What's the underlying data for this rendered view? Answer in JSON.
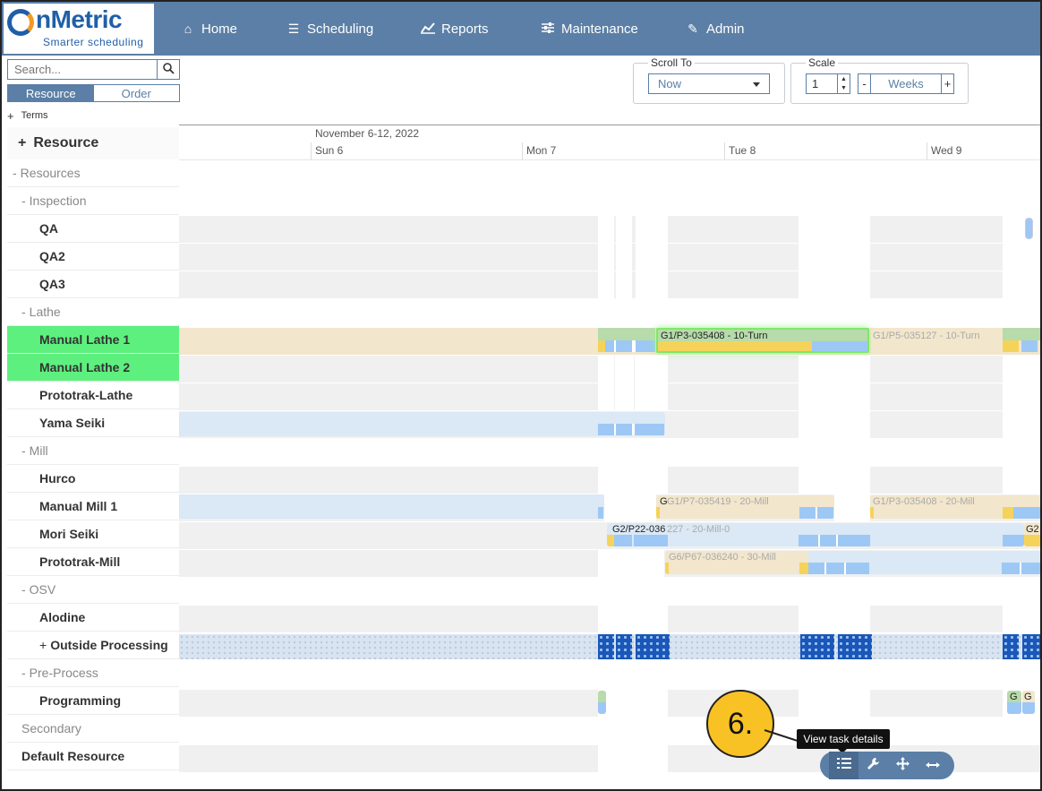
{
  "app": {
    "logo_name": "nMetric",
    "logo_tagline": "Smarter scheduling"
  },
  "nav": [
    {
      "label": "Home",
      "icon": "home-icon"
    },
    {
      "label": "Scheduling",
      "icon": "scheduling-icon"
    },
    {
      "label": "Reports",
      "icon": "chart-icon"
    },
    {
      "label": "Maintenance",
      "icon": "sliders-icon"
    },
    {
      "label": "Admin",
      "icon": "edit-icon"
    }
  ],
  "sidebar": {
    "search_placeholder": "Search...",
    "view_toggle": {
      "resource": "Resource",
      "order": "Order",
      "active": "Resource"
    },
    "terms_label": "Terms",
    "resource_header": "Resource",
    "rows": [
      {
        "label": "Resources",
        "kind": "group",
        "prefix": "-",
        "indent": 0
      },
      {
        "label": "Inspection",
        "kind": "group",
        "prefix": "-",
        "indent": 1
      },
      {
        "label": "QA",
        "kind": "item",
        "prefix": "",
        "indent": 2
      },
      {
        "label": "QA2",
        "kind": "item",
        "prefix": "",
        "indent": 2
      },
      {
        "label": "QA3",
        "kind": "item",
        "prefix": "",
        "indent": 2
      },
      {
        "label": "Lathe",
        "kind": "group",
        "prefix": "-",
        "indent": 1
      },
      {
        "label": "Manual Lathe 1",
        "kind": "item",
        "prefix": "",
        "indent": 2,
        "highlighted": true
      },
      {
        "label": "Manual Lathe 2",
        "kind": "item",
        "prefix": "",
        "indent": 2,
        "highlighted": true
      },
      {
        "label": "Prototrak-Lathe",
        "kind": "item",
        "prefix": "",
        "indent": 2
      },
      {
        "label": "Yama Seiki",
        "kind": "item",
        "prefix": "",
        "indent": 2
      },
      {
        "label": "Mill",
        "kind": "group",
        "prefix": "-",
        "indent": 1
      },
      {
        "label": "Hurco",
        "kind": "item",
        "prefix": "",
        "indent": 2
      },
      {
        "label": "Manual Mill 1",
        "kind": "item",
        "prefix": "",
        "indent": 2
      },
      {
        "label": "Mori Seiki",
        "kind": "item",
        "prefix": "",
        "indent": 2
      },
      {
        "label": "Prototrak-Mill",
        "kind": "item",
        "prefix": "",
        "indent": 2
      },
      {
        "label": "OSV",
        "kind": "group",
        "prefix": "-",
        "indent": 1
      },
      {
        "label": "Alodine",
        "kind": "item",
        "prefix": "",
        "indent": 2
      },
      {
        "label": "Outside Processing",
        "kind": "item",
        "prefix": "+",
        "indent": 2
      },
      {
        "label": "Pre-Process",
        "kind": "group",
        "prefix": "-",
        "indent": 1
      },
      {
        "label": "Programming",
        "kind": "item",
        "prefix": "",
        "indent": 2
      },
      {
        "label": "Secondary",
        "kind": "group",
        "prefix": "",
        "indent": 1
      },
      {
        "label": "Default Resource",
        "kind": "item",
        "prefix": "",
        "indent": 1
      }
    ]
  },
  "toolbar": {
    "scroll_to_legend": "Scroll To",
    "scroll_to_value": "Now",
    "scale_legend": "Scale",
    "scale_value": "1",
    "scale_minus": "-",
    "scale_unit": "Weeks",
    "scale_plus": "+"
  },
  "timeline": {
    "range_label": "November 6-12, 2022",
    "days": [
      "Sun 6",
      "Mon 7",
      "Tue 8",
      "Wed 9"
    ]
  },
  "tasks": {
    "lathe1_selected": "G1/P3-035408 - 10-Turn",
    "lathe1_next": "G1/P5-035127 - 10-Turn",
    "mill1_a": "G1/P7-035419 - 20-Mill",
    "mill1_a_prefix": "G",
    "mill1_b": "G1/P3-035408 - 20-Mill",
    "mori_a_dark": "G2/P22-036",
    "mori_a_light": "227 - 20-Mill-0",
    "mori_b": "G2",
    "proto_mill": "G6/P67-036240 - 30-Mill",
    "prog_a": "G",
    "prog_b": "G"
  },
  "overlay": {
    "callout_number": "6.",
    "tooltip": "View task details",
    "task_buttons": [
      "list-icon",
      "wrench-icon",
      "move-icon",
      "resize-icon"
    ]
  },
  "colors": {
    "nav_bg": "#5b7fa6",
    "highlight_row": "#5ef07e",
    "setup_yellow": "#f5d35a",
    "run_blue": "#9dc8f5",
    "callout_yellow": "#f9c224"
  }
}
